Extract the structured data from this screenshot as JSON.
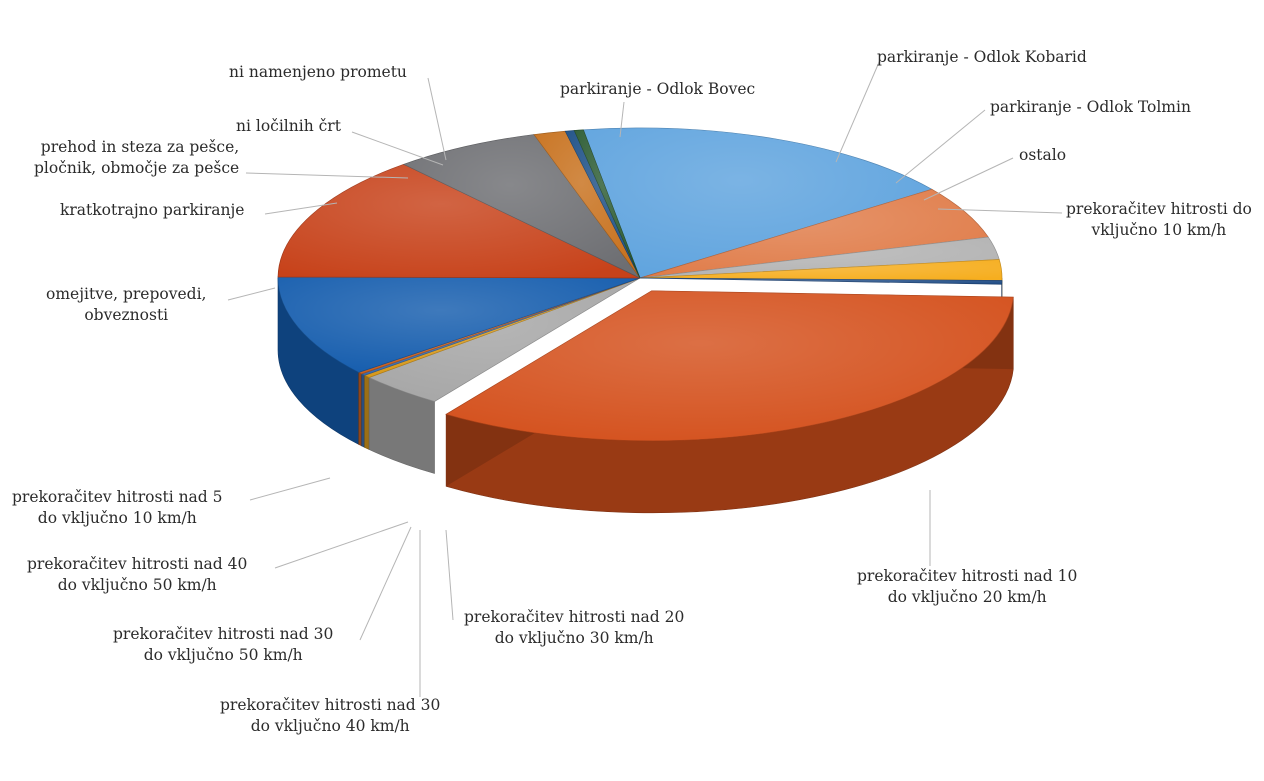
{
  "chart_data": {
    "type": "pie",
    "subtype": "3d-exploded",
    "title": "",
    "legend": "none",
    "slices": [
      {
        "label": "parkiranje - Odlok Bovec",
        "value": 17.2,
        "color": "#5ea3de"
      },
      {
        "label": "parkiranje - Odlok Kobarid",
        "value": 5.6,
        "color": "#e07c49"
      },
      {
        "label": "parkiranje - Odlok Tolmin",
        "value": 2.4,
        "color": "#b3b3b3"
      },
      {
        "label": "ostalo",
        "value": 2.2,
        "color": "#f6ae1f"
      },
      {
        "label": "prekoračitev hitrosti do vključno 10 km/h",
        "value": 0.4,
        "color": "#234f88"
      },
      {
        "label": "prekoračitev hitrosti nad 10 do vključno 20 km/h",
        "value": 33.5,
        "color": "#d4501c"
      },
      {
        "label": "prekoračitev hitrosti nad 20 do vključno 30 km/h",
        "value": 3.8,
        "color": "#a6a6a6"
      },
      {
        "label": "prekoračitev hitrosti nad 30 do vključno 40 km/h",
        "value": 0.3,
        "color": "#d89a1c"
      },
      {
        "label": "prekoračitev hitrosti nad 30 do vključno 50 km/h",
        "value": 0.2,
        "color": "#3b6dae"
      },
      {
        "label": "prekoračitev hitrosti nad 40 do vključno 50 km/h",
        "value": 0.2,
        "color": "#c86022"
      },
      {
        "label": "prekoračitev hitrosti nad 5 do vključno 10 km/h",
        "value": 10.8,
        "color": "#145cad"
      },
      {
        "label": "omejitve, prepovedi, obveznosti",
        "value": 13.4,
        "color": "#c7421a"
      },
      {
        "label": "kratkotrajno parkiranje",
        "value": 6.5,
        "color": "#6d6e72"
      },
      {
        "label": "prehod in steza za pešce, pločnik, območje za pešce",
        "value": 1.4,
        "color": "#c7701c"
      },
      {
        "label": "ni ločilnih črt",
        "value": 0.4,
        "color": "#1c4f86"
      },
      {
        "label": "ni namenjeno prometu",
        "value": 0.4,
        "color": "#2b5b32"
      }
    ]
  },
  "labels": {
    "bovec": [
      "parkiranje - Odlok Bovec"
    ],
    "kobarid": [
      "parkiranje - Odlok Kobarid"
    ],
    "tolmin": [
      "parkiranje - Odlok Tolmin"
    ],
    "ostalo": [
      "ostalo"
    ],
    "do10": [
      "prekoračitev hitrosti do",
      "vključno 10 km/h"
    ],
    "nad10": [
      "prekoračitev hitrosti nad 10",
      "do vključno 20 km/h"
    ],
    "nad20": [
      "prekoračitev hitrosti nad 20",
      "do vključno 30 km/h"
    ],
    "nad30_40": [
      "prekoračitev hitrosti nad 30",
      "do vključno 40 km/h"
    ],
    "nad30_50": [
      "prekoračitev hitrosti nad 30",
      "do vključno 50 km/h"
    ],
    "nad40": [
      "prekoračitev hitrosti nad 40",
      "do vključno 50 km/h"
    ],
    "nad5": [
      "prekoračitev hitrosti nad 5",
      "do vključno 10 km/h"
    ],
    "omejitve": [
      "omejitve, prepovedi,",
      "obveznosti"
    ],
    "kratkotrajno": [
      "kratkotrajno parkiranje"
    ],
    "prehod": [
      "prehod in steza za pešce,",
      "pločnik, območje za pešce"
    ],
    "locilnih": [
      "ni ločilnih črt"
    ],
    "namenjeno": [
      "ni namenjeno prometu"
    ]
  }
}
